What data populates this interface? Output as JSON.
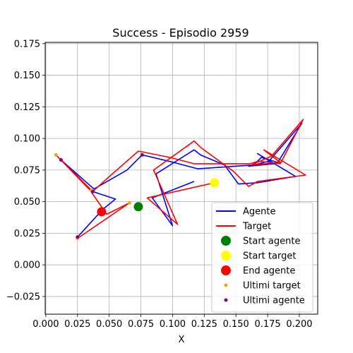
{
  "chart_data": {
    "type": "line",
    "title": "Success - Episodio 2959",
    "xlabel": "X",
    "ylabel": "",
    "xlim": [
      -0.0005,
      0.2145
    ],
    "ylim": [
      -0.039,
      0.176
    ],
    "xticks": [
      0.0,
      0.025,
      0.05,
      0.075,
      0.1,
      0.125,
      0.15,
      0.175,
      0.2
    ],
    "xtick_labels": [
      "0.000",
      "0.025",
      "0.050",
      "0.075",
      "0.100",
      "0.125",
      "0.150",
      "0.175",
      "0.200"
    ],
    "yticks": [
      -0.025,
      0.0,
      0.025,
      0.05,
      0.075,
      0.1,
      0.125,
      0.15,
      0.175
    ],
    "ytick_labels": [
      "−0.025",
      "0.000",
      "0.025",
      "0.050",
      "0.075",
      "0.100",
      "0.125",
      "0.150",
      "0.175"
    ],
    "grid": true,
    "legend_position": "lower right",
    "colors": {
      "agent": "#0000ff",
      "target": "#ff0000",
      "start_agent": "#008000",
      "start_target": "#ffff00",
      "end_agent": "#ff0000",
      "last_target": "#ffa500",
      "last_agent": "#800080"
    },
    "series": [
      {
        "name": "Agente",
        "kind": "line",
        "color": "#0000ff",
        "points": [
          [
            0.117,
            0.066
          ],
          [
            0.084,
            0.053
          ],
          [
            0.1,
            0.031
          ],
          [
            0.087,
            0.072
          ],
          [
            0.117,
            0.091
          ],
          [
            0.122,
            0.087
          ],
          [
            0.141,
            0.079
          ],
          [
            0.152,
            0.064
          ],
          [
            0.167,
            0.065
          ],
          [
            0.197,
            0.07
          ],
          [
            0.167,
            0.088
          ],
          [
            0.18,
            0.08
          ],
          [
            0.16,
            0.078
          ],
          [
            0.176,
            0.082
          ],
          [
            0.202,
            0.112
          ],
          [
            0.183,
            0.081
          ],
          [
            0.17,
            0.085
          ],
          [
            0.164,
            0.079
          ],
          [
            0.12,
            0.076
          ],
          [
            0.097,
            0.082
          ],
          [
            0.076,
            0.087
          ],
          [
            0.064,
            0.075
          ],
          [
            0.038,
            0.06
          ],
          [
            0.012,
            0.083
          ],
          [
            0.037,
            0.058
          ],
          [
            0.055,
            0.052
          ],
          [
            0.045,
            0.044
          ],
          [
            0.025,
            0.022
          ]
        ]
      },
      {
        "name": "Target",
        "kind": "line",
        "color": "#ff0000",
        "points": [
          [
            0.133,
            0.065
          ],
          [
            0.08,
            0.053
          ],
          [
            0.104,
            0.032
          ],
          [
            0.085,
            0.075
          ],
          [
            0.117,
            0.098
          ],
          [
            0.122,
            0.093
          ],
          [
            0.148,
            0.074
          ],
          [
            0.16,
            0.062
          ],
          [
            0.167,
            0.066
          ],
          [
            0.205,
            0.071
          ],
          [
            0.172,
            0.091
          ],
          [
            0.185,
            0.081
          ],
          [
            0.162,
            0.079
          ],
          [
            0.178,
            0.086
          ],
          [
            0.203,
            0.115
          ],
          [
            0.185,
            0.08
          ],
          [
            0.168,
            0.082
          ],
          [
            0.161,
            0.08
          ],
          [
            0.117,
            0.08
          ],
          [
            0.098,
            0.085
          ],
          [
            0.073,
            0.09
          ],
          [
            0.048,
            0.068
          ],
          [
            0.037,
            0.058
          ],
          [
            0.008,
            0.087
          ],
          [
            0.035,
            0.059
          ],
          [
            0.048,
            0.04
          ],
          [
            0.066,
            0.049
          ],
          [
            0.025,
            0.021
          ]
        ]
      },
      {
        "name": "Start agente",
        "kind": "marker",
        "color": "#008000",
        "points": [
          [
            0.073,
            0.046
          ]
        ]
      },
      {
        "name": "Start target",
        "kind": "marker",
        "color": "#ffff00",
        "points": [
          [
            0.133,
            0.065
          ]
        ]
      },
      {
        "name": "End agente",
        "kind": "marker",
        "color": "#ff0000",
        "points": [
          [
            0.044,
            0.042
          ]
        ]
      },
      {
        "name": "Ultimi target",
        "kind": "dots",
        "color": "#ffa500",
        "points": [
          [
            0.008,
            0.087
          ],
          [
            0.025,
            0.021
          ],
          [
            0.036,
            0.059
          ],
          [
            0.066,
            0.049
          ]
        ]
      },
      {
        "name": "Ultimi agente",
        "kind": "dots",
        "color": "#800080",
        "points": [
          [
            0.012,
            0.083
          ],
          [
            0.025,
            0.022
          ],
          [
            0.037,
            0.058
          ],
          [
            0.076,
            0.087
          ]
        ]
      }
    ]
  }
}
